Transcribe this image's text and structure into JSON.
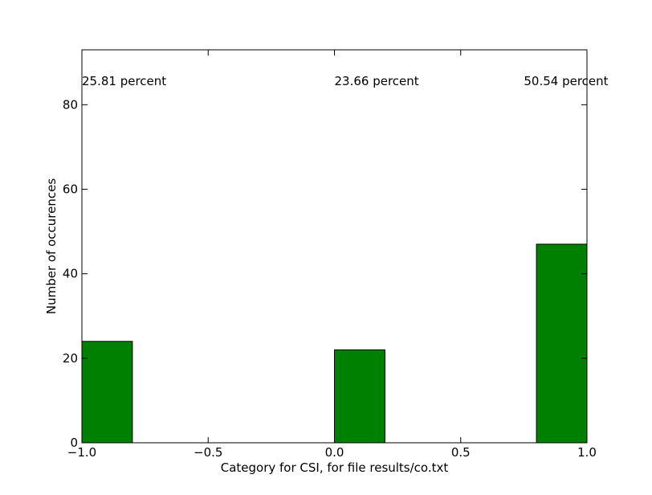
{
  "chart_data": {
    "type": "bar",
    "title": "",
    "xlabel": "Category for CSI, for file results/co.txt",
    "ylabel": "Number of occurences",
    "xlim": [
      -1.0,
      1.0
    ],
    "ylim": [
      0,
      93
    ],
    "grid": false,
    "bars": [
      {
        "x0": -1.0,
        "x1": -0.8,
        "value": 24
      },
      {
        "x0": 0.0,
        "x1": 0.2,
        "value": 22
      },
      {
        "x0": 0.8,
        "x1": 1.0,
        "value": 47
      }
    ],
    "x_ticks": [
      {
        "value": -1.0,
        "label": "−1.0"
      },
      {
        "value": -0.5,
        "label": "−0.5"
      },
      {
        "value": 0.0,
        "label": "0.0"
      },
      {
        "value": 0.5,
        "label": "0.5"
      },
      {
        "value": 1.0,
        "label": "1.0"
      }
    ],
    "y_ticks": [
      {
        "value": 0,
        "label": "0"
      },
      {
        "value": 20,
        "label": "20"
      },
      {
        "value": 40,
        "label": "40"
      },
      {
        "value": 60,
        "label": "60"
      },
      {
        "value": 80,
        "label": "80"
      }
    ],
    "annotations": [
      {
        "x": -1.0,
        "y": 85,
        "text": "25.81 percent"
      },
      {
        "x": 0.0,
        "y": 85,
        "text": "23.66 percent"
      },
      {
        "x": 0.75,
        "y": 85,
        "text": "50.54 percent"
      }
    ],
    "colors": {
      "bar_fill": "#008000",
      "bar_edge": "#000000",
      "axes": "#000000"
    }
  }
}
